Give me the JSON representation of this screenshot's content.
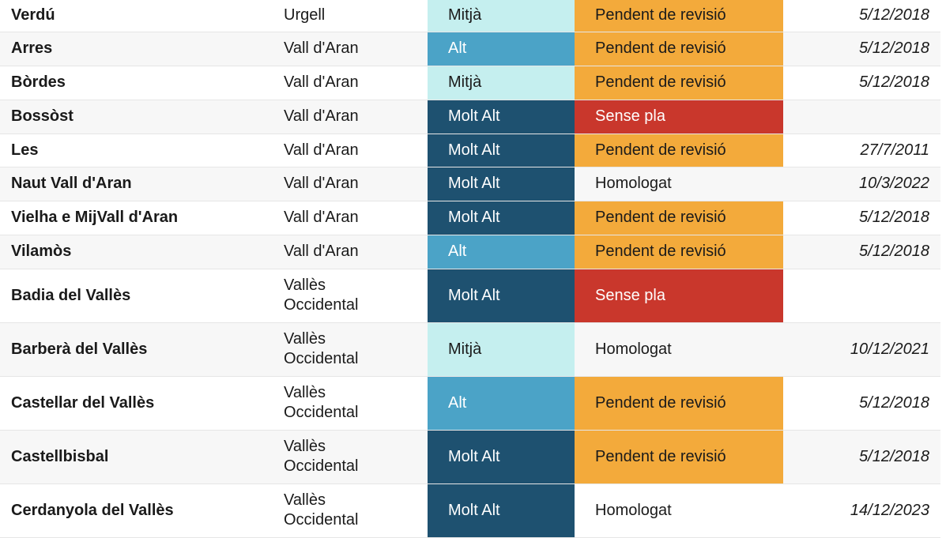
{
  "colors": {
    "risk_mitja": "#c5efef",
    "risk_alt": "#4ba3c7",
    "risk_molt_alt": "#1e5170",
    "plan_pendent": "#f3aa3b",
    "plan_sense": "#c9372c"
  },
  "rows": [
    {
      "name": "Verdú",
      "comarca": [
        "Urgell"
      ],
      "risk": "Mitjà",
      "plan": "Pendent de revisió",
      "date": "5/12/2018"
    },
    {
      "name": "Arres",
      "comarca": [
        "Vall d'Aran"
      ],
      "risk": "Alt",
      "plan": "Pendent de revisió",
      "date": "5/12/2018"
    },
    {
      "name": "Bòrdes",
      "comarca": [
        "Vall d'Aran"
      ],
      "risk": "Mitjà",
      "plan": "Pendent de revisió",
      "date": "5/12/2018"
    },
    {
      "name": "Bossòst",
      "comarca": [
        "Vall d'Aran"
      ],
      "risk": "Molt Alt",
      "plan": "Sense pla",
      "date": ""
    },
    {
      "name": "Les",
      "comarca": [
        "Vall d'Aran"
      ],
      "risk": "Molt Alt",
      "plan": "Pendent de revisió",
      "date": "27/7/2011"
    },
    {
      "name": "Naut Vall d'Aran",
      "comarca": [
        "Vall d'Aran"
      ],
      "risk": "Molt Alt",
      "plan": "Homologat",
      "date": "10/3/2022"
    },
    {
      "name": "Vielha e MijVall d'Aran",
      "comarca": [
        "Vall d'Aran"
      ],
      "risk": "Molt Alt",
      "plan": "Pendent de revisió",
      "date": "5/12/2018"
    },
    {
      "name": "Vilamòs",
      "comarca": [
        "Vall d'Aran"
      ],
      "risk": "Alt",
      "plan": "Pendent de revisió",
      "date": "5/12/2018"
    },
    {
      "name": "Badia del Vallès",
      "comarca": [
        "Vallès",
        "Occidental"
      ],
      "risk": "Molt Alt",
      "plan": "Sense pla",
      "date": ""
    },
    {
      "name": "Barberà del Vallès",
      "comarca": [
        "Vallès",
        "Occidental"
      ],
      "risk": "Mitjà",
      "plan": "Homologat",
      "date": "10/12/2021"
    },
    {
      "name": "Castellar del Vallès",
      "comarca": [
        "Vallès",
        "Occidental"
      ],
      "risk": "Alt",
      "plan": "Pendent de revisió",
      "date": "5/12/2018"
    },
    {
      "name": "Castellbisbal",
      "comarca": [
        "Vallès",
        "Occidental"
      ],
      "risk": "Molt Alt",
      "plan": "Pendent de revisió",
      "date": "5/12/2018"
    },
    {
      "name": "Cerdanyola del Vallès",
      "comarca": [
        "Vallès",
        "Occidental"
      ],
      "risk": "Molt Alt",
      "plan": "Homologat",
      "date": "14/12/2023"
    }
  ]
}
